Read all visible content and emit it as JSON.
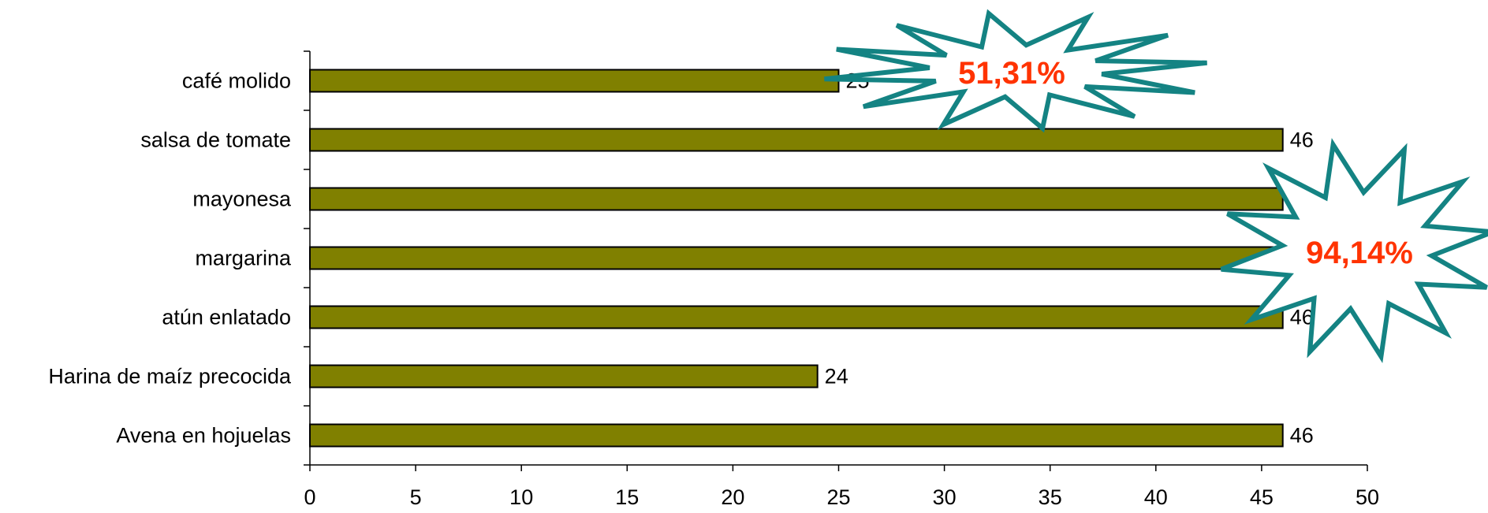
{
  "chart_data": {
    "type": "bar",
    "orientation": "horizontal",
    "categories": [
      "café molido",
      "salsa de tomate",
      "mayonesa",
      "margarina",
      "atún enlatado",
      "Harina de maíz precocida",
      "Avena en hojuelas"
    ],
    "values": [
      25,
      46,
      46,
      46,
      46,
      24,
      46
    ],
    "data_labels": [
      "25",
      "46",
      "46",
      "46",
      "46",
      "24",
      "46"
    ],
    "xlim": [
      0,
      50
    ],
    "x_ticks": [
      0,
      5,
      10,
      15,
      20,
      25,
      30,
      35,
      40,
      45,
      50
    ],
    "title": "",
    "xlabel": "",
    "ylabel": "",
    "grid": false,
    "legend": "none",
    "bar_color": "#808000",
    "bar_edge_color": "#000000",
    "annotations": [
      {
        "text": "51,31%",
        "shape": "starburst",
        "text_color": "#FF3300",
        "outline_color": "#148383",
        "fill_color": "#ffffff"
      },
      {
        "text": "94,14%",
        "shape": "starburst",
        "text_color": "#FF3300",
        "outline_color": "#148383",
        "fill_color": "#ffffff"
      }
    ]
  }
}
